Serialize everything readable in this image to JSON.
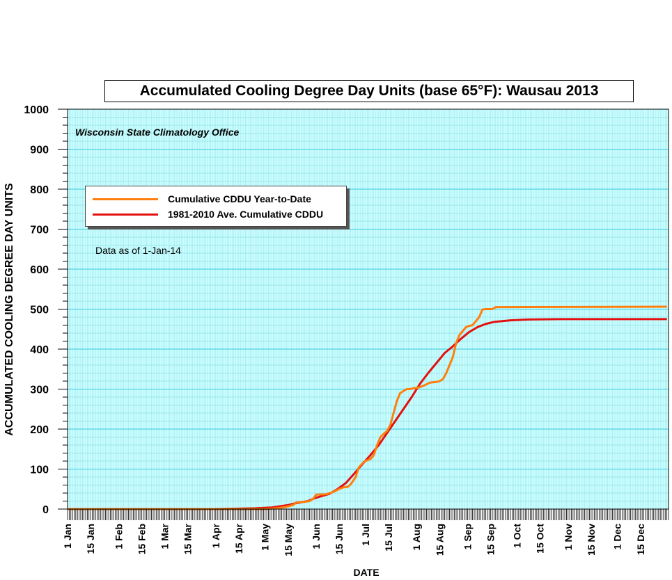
{
  "chart_data": {
    "type": "line",
    "title": "Accumulated Cooling Degree Day Units (base 65°F): Wausau 2013",
    "subtitle": "Wisconsin State Climatology Office",
    "note": "Data as of 1-Jan-14",
    "xlabel": "DATE",
    "ylabel": "ACCUMULATED COOLING DEGREE DAY UNITS",
    "ylim": [
      0,
      1000
    ],
    "yticks": [
      0,
      100,
      200,
      300,
      400,
      500,
      600,
      700,
      800,
      900,
      1000
    ],
    "xlim": [
      "1 Jan",
      "31 Dec"
    ],
    "xtick_labels": [
      {
        "label": "1 Jan",
        "day": 1
      },
      {
        "label": "15 Jan",
        "day": 15
      },
      {
        "label": "1 Feb",
        "day": 32
      },
      {
        "label": "15 Feb",
        "day": 46
      },
      {
        "label": "1 Mar",
        "day": 60
      },
      {
        "label": "15 Mar",
        "day": 74
      },
      {
        "label": "1 Apr",
        "day": 91
      },
      {
        "label": "15 Apr",
        "day": 105
      },
      {
        "label": "1 May",
        "day": 121
      },
      {
        "label": "15 May",
        "day": 135
      },
      {
        "label": "1 Jun",
        "day": 152
      },
      {
        "label": "15 Jun",
        "day": 166
      },
      {
        "label": "1 Jul",
        "day": 182
      },
      {
        "label": "15 Jul",
        "day": 196
      },
      {
        "label": "1 Aug",
        "day": 213
      },
      {
        "label": "15 Aug",
        "day": 227
      },
      {
        "label": "1 Sep",
        "day": 244
      },
      {
        "label": "15 Sep",
        "day": 258
      },
      {
        "label": "1 Oct",
        "day": 274
      },
      {
        "label": "15 Oct",
        "day": 288
      },
      {
        "label": "1 Nov",
        "day": 305
      },
      {
        "label": "15 Nov",
        "day": 319
      },
      {
        "label": "1 Dec",
        "day": 335
      },
      {
        "label": "15 Dec",
        "day": 349
      }
    ],
    "grid": true,
    "legend_position": "upper-left",
    "series": [
      {
        "name": "Cumulative CDDU Year-to-Date",
        "color": "#ff7f0e",
        "points": [
          [
            1,
            0
          ],
          [
            120,
            0
          ],
          [
            128,
            2
          ],
          [
            133,
            5
          ],
          [
            138,
            10
          ],
          [
            140,
            17
          ],
          [
            145,
            18
          ],
          [
            148,
            20
          ],
          [
            150,
            25
          ],
          [
            152,
            36
          ],
          [
            158,
            37
          ],
          [
            162,
            42
          ],
          [
            166,
            50
          ],
          [
            169,
            55
          ],
          [
            171,
            55
          ],
          [
            173,
            62
          ],
          [
            176,
            80
          ],
          [
            178,
            105
          ],
          [
            181,
            118
          ],
          [
            183,
            122
          ],
          [
            185,
            125
          ],
          [
            187,
            135
          ],
          [
            189,
            160
          ],
          [
            191,
            180
          ],
          [
            193,
            188
          ],
          [
            195,
            195
          ],
          [
            197,
            210
          ],
          [
            199,
            240
          ],
          [
            201,
            270
          ],
          [
            203,
            290
          ],
          [
            205,
            295
          ],
          [
            207,
            300
          ],
          [
            209,
            300
          ],
          [
            211,
            302
          ],
          [
            213,
            303
          ],
          [
            215,
            305
          ],
          [
            217,
            308
          ],
          [
            219,
            312
          ],
          [
            221,
            316
          ],
          [
            223,
            317
          ],
          [
            225,
            318
          ],
          [
            227,
            320
          ],
          [
            229,
            325
          ],
          [
            231,
            340
          ],
          [
            233,
            360
          ],
          [
            235,
            380
          ],
          [
            237,
            415
          ],
          [
            239,
            435
          ],
          [
            241,
            445
          ],
          [
            243,
            455
          ],
          [
            245,
            458
          ],
          [
            247,
            460
          ],
          [
            249,
            470
          ],
          [
            251,
            480
          ],
          [
            253,
            499
          ],
          [
            255,
            500
          ],
          [
            257,
            500
          ],
          [
            259,
            500
          ],
          [
            261,
            505
          ],
          [
            365,
            506
          ]
        ]
      },
      {
        "name": "1981-2010 Ave. Cumulative CDDU",
        "color": "#e3100f",
        "points": [
          [
            1,
            0
          ],
          [
            90,
            0
          ],
          [
            105,
            1
          ],
          [
            115,
            2
          ],
          [
            125,
            4
          ],
          [
            135,
            10
          ],
          [
            140,
            15
          ],
          [
            147,
            20
          ],
          [
            151,
            27
          ],
          [
            155,
            32
          ],
          [
            160,
            38
          ],
          [
            165,
            50
          ],
          [
            170,
            65
          ],
          [
            175,
            88
          ],
          [
            180,
            112
          ],
          [
            185,
            135
          ],
          [
            190,
            160
          ],
          [
            195,
            190
          ],
          [
            200,
            220
          ],
          [
            205,
            250
          ],
          [
            210,
            280
          ],
          [
            215,
            313
          ],
          [
            220,
            340
          ],
          [
            225,
            365
          ],
          [
            230,
            390
          ],
          [
            235,
            407
          ],
          [
            240,
            426
          ],
          [
            245,
            443
          ],
          [
            250,
            455
          ],
          [
            255,
            463
          ],
          [
            260,
            468
          ],
          [
            265,
            470
          ],
          [
            270,
            472
          ],
          [
            280,
            474
          ],
          [
            300,
            475
          ],
          [
            365,
            475
          ]
        ]
      }
    ]
  }
}
